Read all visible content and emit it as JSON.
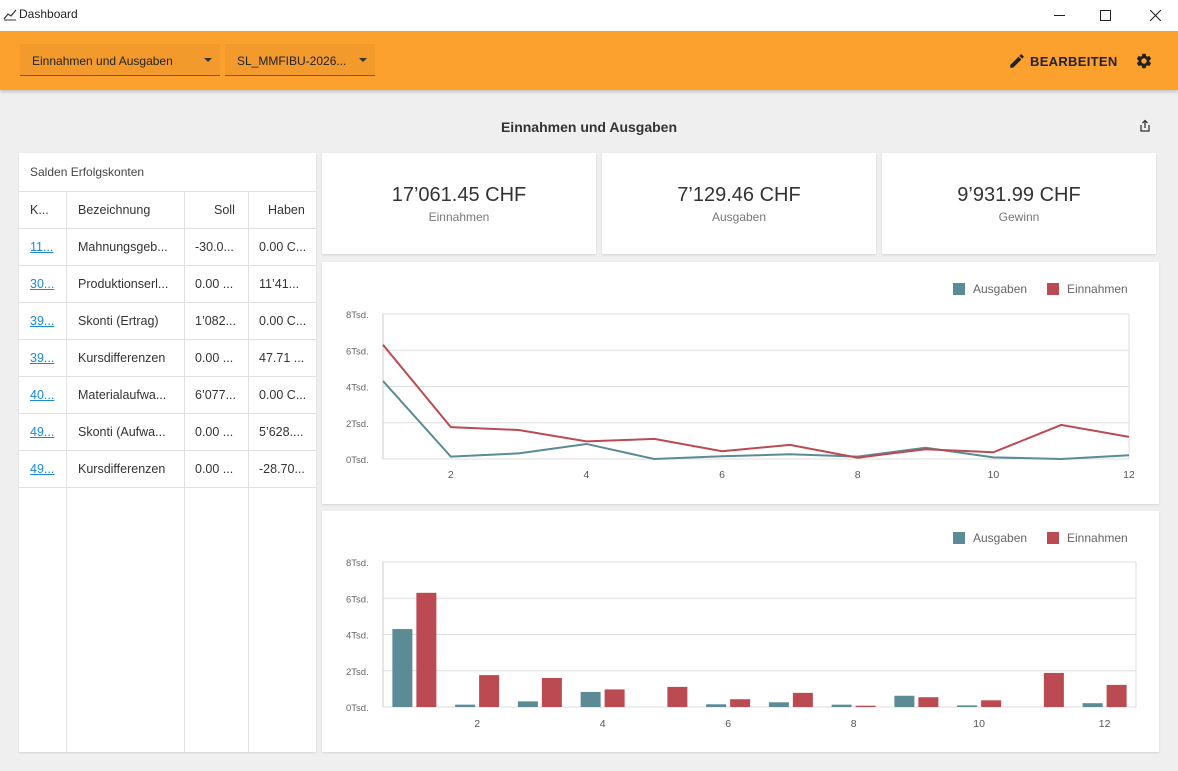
{
  "window": {
    "title": "Dashboard",
    "icons": {
      "app": "chart-line-icon",
      "minimize": "minimize-icon",
      "maximize": "maximize-icon",
      "close": "close-icon"
    }
  },
  "toolbar": {
    "select_report": "Einnahmen und Ausgaben",
    "select_dataset": "SL_MMFIBU-2026...",
    "edit_label": "BEARBEITEN",
    "icons": {
      "edit": "pencil-icon",
      "settings": "gear-icon",
      "dropdown": "chevron-down-icon"
    }
  },
  "heading": {
    "title": "Einnahmen und Ausgaben",
    "share_icon": "share-icon"
  },
  "table": {
    "title": "Salden Erfolgskonten",
    "columns": [
      "K...",
      "Bezeichnung",
      "Soll",
      "Haben"
    ],
    "rows": [
      {
        "konto": "11...",
        "bezeichnung": "Mahnungsgeb...",
        "soll": "-30.0...",
        "haben": "0.00 C..."
      },
      {
        "konto": "30...",
        "bezeichnung": "Produktionserl...",
        "soll": "0.00 ...",
        "haben": "11’41..."
      },
      {
        "konto": "39...",
        "bezeichnung": "Skonti (Ertrag)",
        "soll": "1’082...",
        "haben": "0.00 C..."
      },
      {
        "konto": "39...",
        "bezeichnung": "Kursdifferenzen",
        "soll": "0.00 ...",
        "haben": "47.71 ..."
      },
      {
        "konto": "40...",
        "bezeichnung": "Materialaufwa...",
        "soll": "6’077...",
        "haben": "0.00 C..."
      },
      {
        "konto": "49...",
        "bezeichnung": "Skonti (Aufwa...",
        "soll": "0.00 ...",
        "haben": "5’628...."
      },
      {
        "konto": "49...",
        "bezeichnung": "Kursdifferenzen",
        "soll": "0.00 ...",
        "haben": "-28.70..."
      }
    ]
  },
  "kpis": [
    {
      "value": "17’061.45 CHF",
      "label": "Einnahmen"
    },
    {
      "value": "7’129.46 CHF",
      "label": "Ausgaben"
    },
    {
      "value": "9’931.99 CHF",
      "label": "Gewinn"
    }
  ],
  "colors": {
    "ausgaben": "#5b8b94",
    "einnahmen": "#bc4a52",
    "accent": "#fda12e"
  },
  "chart_data": [
    {
      "type": "line",
      "x": [
        1,
        2,
        3,
        4,
        5,
        6,
        7,
        8,
        9,
        10,
        11,
        12
      ],
      "xticks": [
        "2",
        "4",
        "6",
        "8",
        "10",
        "12"
      ],
      "yticks": [
        "0Tsd.",
        "2Tsd.",
        "4Tsd.",
        "6Tsd.",
        "8Tsd."
      ],
      "ylim": [
        0,
        8000
      ],
      "legend": "top-right",
      "grid": true,
      "series": [
        {
          "name": "Ausgaben",
          "values": [
            4300,
            130,
            310,
            830,
            0,
            150,
            260,
            130,
            620,
            90,
            0,
            210
          ]
        },
        {
          "name": "Einnahmen",
          "values": [
            6300,
            1760,
            1600,
            970,
            1110,
            430,
            780,
            70,
            540,
            370,
            1880,
            1220
          ]
        }
      ]
    },
    {
      "type": "bar",
      "categories": [
        "1",
        "2",
        "3",
        "4",
        "5",
        "6",
        "7",
        "8",
        "9",
        "10",
        "11",
        "12"
      ],
      "xticks": [
        "2",
        "4",
        "6",
        "8",
        "10",
        "12"
      ],
      "yticks": [
        "0Tsd.",
        "2Tsd.",
        "4Tsd.",
        "6Tsd.",
        "8Tsd."
      ],
      "ylim": [
        0,
        8000
      ],
      "legend": "top-right",
      "grid": true,
      "series": [
        {
          "name": "Ausgaben",
          "values": [
            4300,
            130,
            310,
            830,
            0,
            150,
            260,
            130,
            620,
            90,
            0,
            210
          ]
        },
        {
          "name": "Einnahmen",
          "values": [
            6300,
            1760,
            1600,
            970,
            1110,
            430,
            780,
            70,
            540,
            370,
            1880,
            1220
          ]
        }
      ]
    }
  ]
}
